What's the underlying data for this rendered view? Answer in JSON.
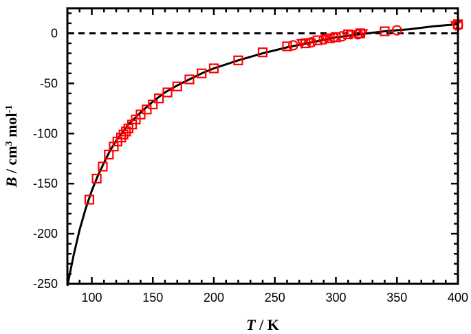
{
  "chart_data": {
    "type": "scatter",
    "xlabel": {
      "var": "T",
      "unit": " / K"
    },
    "ylabel": {
      "var": "B",
      "unit_before": " / cm",
      "sup1": "3",
      "unit_mid": " mol",
      "sup2": "-1"
    },
    "xlim": [
      80,
      400
    ],
    "ylim": [
      -250,
      25
    ],
    "x_ticks": [
      100,
      150,
      200,
      250,
      300,
      350,
      400
    ],
    "y_ticks": [
      0,
      -50,
      -100,
      -150,
      -200,
      -250
    ],
    "grid": false,
    "reference_line": {
      "y": 0,
      "style": "dashed",
      "color": "#000000"
    },
    "colors": {
      "markers": "#ff0000",
      "curve": "#000000",
      "axes": "#000000"
    },
    "series": [
      {
        "marker": "square",
        "points": [
          [
            98,
            -166
          ],
          [
            104,
            -145
          ],
          [
            109,
            -133
          ],
          [
            114,
            -121
          ],
          [
            118,
            -113
          ],
          [
            121,
            -108
          ],
          [
            124,
            -104
          ],
          [
            126,
            -101
          ],
          [
            128,
            -98
          ],
          [
            130,
            -95
          ],
          [
            133,
            -91
          ],
          [
            136,
            -86
          ],
          [
            140,
            -81
          ],
          [
            145,
            -76
          ],
          [
            150,
            -71
          ],
          [
            155,
            -65
          ],
          [
            162,
            -59
          ],
          [
            170,
            -53
          ],
          [
            180,
            -46
          ],
          [
            190,
            -40
          ],
          [
            200,
            -35
          ],
          [
            220,
            -27
          ],
          [
            240,
            -19
          ],
          [
            260,
            -13
          ],
          [
            275,
            -10
          ],
          [
            285,
            -7
          ],
          [
            295,
            -5
          ],
          [
            300,
            -4
          ],
          [
            310,
            -1
          ],
          [
            320,
            0
          ],
          [
            340,
            2
          ],
          [
            400,
            9
          ]
        ]
      },
      {
        "marker": "circle",
        "points": [
          [
            265,
            -12
          ],
          [
            280,
            -9
          ],
          [
            290,
            -6
          ],
          [
            298,
            -4
          ],
          [
            305,
            -3
          ],
          [
            318,
            -1
          ],
          [
            350,
            3
          ],
          [
            400,
            8
          ]
        ]
      },
      {
        "marker": "triangle",
        "points": [
          [
            272,
            -10
          ],
          [
            278,
            -9
          ],
          [
            292,
            -6
          ],
          [
            312,
            -1
          ],
          [
            322,
            0
          ],
          [
            398,
            8
          ]
        ]
      }
    ],
    "fit_curve": {
      "points": [
        [
          80,
          -252
        ],
        [
          85,
          -222
        ],
        [
          90,
          -196
        ],
        [
          95,
          -175
        ],
        [
          100,
          -157
        ],
        [
          105,
          -142
        ],
        [
          110,
          -129
        ],
        [
          115,
          -117
        ],
        [
          120,
          -107
        ],
        [
          125,
          -99
        ],
        [
          130,
          -91
        ],
        [
          140,
          -79
        ],
        [
          150,
          -68
        ],
        [
          160,
          -59
        ],
        [
          170,
          -52
        ],
        [
          180,
          -46
        ],
        [
          190,
          -40
        ],
        [
          200,
          -35
        ],
        [
          220,
          -27
        ],
        [
          240,
          -20
        ],
        [
          260,
          -14
        ],
        [
          280,
          -9
        ],
        [
          300,
          -4
        ],
        [
          320,
          -1
        ],
        [
          340,
          2
        ],
        [
          360,
          4
        ],
        [
          380,
          7
        ],
        [
          400,
          9
        ]
      ]
    }
  }
}
